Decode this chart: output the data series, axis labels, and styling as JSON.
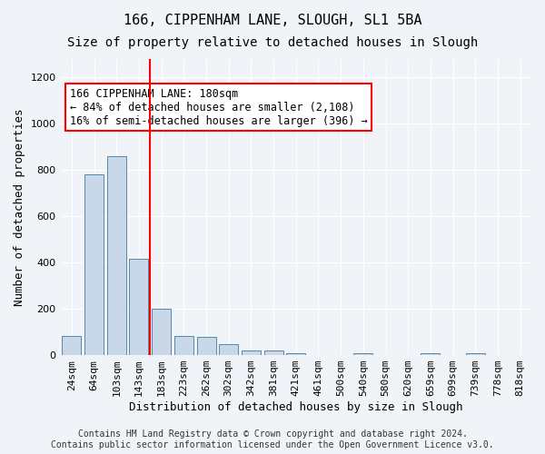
{
  "title1": "166, CIPPENHAM LANE, SLOUGH, SL1 5BA",
  "title2": "Size of property relative to detached houses in Slough",
  "xlabel": "Distribution of detached houses by size in Slough",
  "ylabel": "Number of detached properties",
  "bins": [
    "24sqm",
    "64sqm",
    "103sqm",
    "143sqm",
    "183sqm",
    "223sqm",
    "262sqm",
    "302sqm",
    "342sqm",
    "381sqm",
    "421sqm",
    "461sqm",
    "500sqm",
    "540sqm",
    "580sqm",
    "620sqm",
    "659sqm",
    "699sqm",
    "739sqm",
    "778sqm",
    "818sqm"
  ],
  "values": [
    82,
    780,
    860,
    415,
    200,
    83,
    80,
    47,
    20,
    18,
    10,
    0,
    0,
    10,
    0,
    0,
    10,
    0,
    10,
    0,
    0
  ],
  "bar_color": "#c8d8e8",
  "bar_edge_color": "#5588aa",
  "vline_x_index": 4,
  "vline_color": "red",
  "annotation_text": "166 CIPPENHAM LANE: 180sqm\n← 84% of detached houses are smaller (2,108)\n16% of semi-detached houses are larger (396) →",
  "annotation_box_color": "white",
  "annotation_box_edge_color": "red",
  "ylim": [
    0,
    1280
  ],
  "yticks": [
    0,
    200,
    400,
    600,
    800,
    1000,
    1200
  ],
  "footer": "Contains HM Land Registry data © Crown copyright and database right 2024.\nContains public sector information licensed under the Open Government Licence v3.0.",
  "bg_color": "#f0f4f8",
  "plot_bg_color": "#f0f4f8",
  "grid_color": "white",
  "title1_fontsize": 11,
  "title2_fontsize": 10,
  "xlabel_fontsize": 9,
  "ylabel_fontsize": 9,
  "tick_fontsize": 8,
  "annotation_fontsize": 8.5,
  "footer_fontsize": 7
}
